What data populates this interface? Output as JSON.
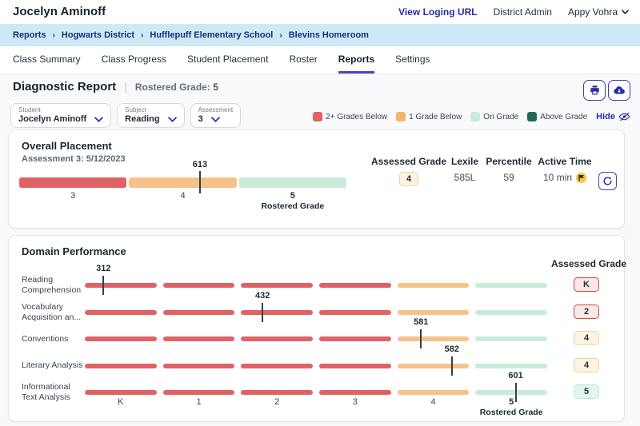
{
  "colors": {
    "below2": "#DF6264",
    "below1": "#F2B56F",
    "on_grade": "#C8EBDA",
    "above_grade": "#20695A",
    "accent_indigo": "#2A2AA8",
    "tab_underline": "#5143C9",
    "breadcrumb_bg": "#CDE9F6",
    "breadcrumb_text": "#1B2C7C",
    "bar_orange": "#F7C289",
    "marker": "#323F4B"
  },
  "header": {
    "user_name": "Jocelyn Aminoff",
    "view_login_url": "View Loging URL",
    "role": "District Admin",
    "account_name": "Appy Vohra"
  },
  "breadcrumb": {
    "separator": "›",
    "items": [
      "Reports",
      "Hogwarts District",
      "Hufflepuff Elementary School",
      "Blevins Homeroom"
    ]
  },
  "tabs": [
    {
      "label": "Class Summary",
      "active": false
    },
    {
      "label": "Class Progress",
      "active": false
    },
    {
      "label": "Student Placement",
      "active": false
    },
    {
      "label": "Roster",
      "active": false
    },
    {
      "label": "Reports",
      "active": true
    },
    {
      "label": "Settings",
      "active": false
    }
  ],
  "page": {
    "title": "Diagnostic Report",
    "divider": "|",
    "rostered_grade_label": "Rostered Grade:",
    "rostered_grade_value": "5"
  },
  "filters": {
    "student_label": "Student",
    "student_value": "Jocelyn Aminoff",
    "subject_label": "Subject",
    "subject_value": "Reading",
    "assessment_label": "Assessment",
    "assessment_value": "3"
  },
  "legend": {
    "items": [
      {
        "label": "2+ Grades Below",
        "status": "below2"
      },
      {
        "label": "1 Grade Below",
        "status": "below1"
      },
      {
        "label": "On Grade",
        "status": "on_grade"
      },
      {
        "label": "Above Grade",
        "status": "above_grade"
      }
    ],
    "hide_label": "Hide"
  },
  "overall_card": {
    "title": "Overall Placement",
    "subtitle": "Assessment 3: 5/12/2023",
    "stats": {
      "assessed_grade_label": "Assessed Grade",
      "assessed_grade_value": "4",
      "assessed_grade_status": "below1",
      "lexile_label": "Lexile",
      "lexile_value": "585L",
      "percentile_label": "Percentile",
      "percentile_value": "59",
      "active_time_label": "Active Time",
      "active_time_value": "10 min"
    }
  },
  "domain_card": {
    "title": "Domain Performance",
    "assessed_grade_header": "Assessed Grade"
  },
  "chart_data": [
    {
      "type": "bar",
      "name": "overall_placement",
      "title": "Overall Placement",
      "subtitle": "Assessment 3: 5/12/2023",
      "bands": [
        {
          "grade": "3",
          "status": "below2"
        },
        {
          "grade": "4",
          "status": "below1"
        },
        {
          "grade": "5",
          "status": "on_grade",
          "note": "Rostered Grade"
        }
      ],
      "marker": {
        "value": 613,
        "band_index": 1,
        "fraction": 0.66
      }
    },
    {
      "type": "bar",
      "name": "domain_performance",
      "title": "Domain Performance",
      "x_categories": [
        "K",
        "1",
        "2",
        "3",
        "4",
        "5"
      ],
      "x_axis_note": "Rostered Grade",
      "rostered_grade_index": 5,
      "segment_status_by_grade": [
        "below2",
        "below2",
        "below2",
        "below2",
        "below1",
        "on_grade"
      ],
      "rows": [
        {
          "label_lines": [
            "Reading",
            "Comprehension"
          ],
          "value": 312,
          "segment_index": 0,
          "fraction": 0.26,
          "assessed_grade": "K",
          "assessed_status": "below2"
        },
        {
          "label_lines": [
            "Vocabulary",
            "Acquisition an..."
          ],
          "value": 432,
          "segment_index": 2,
          "fraction": 0.3,
          "assessed_grade": "2",
          "assessed_status": "below2"
        },
        {
          "label_lines": [
            "Conventions"
          ],
          "value": 581,
          "segment_index": 4,
          "fraction": 0.33,
          "assessed_grade": "4",
          "assessed_status": "below1"
        },
        {
          "label_lines": [
            "Literary Analysis"
          ],
          "value": 582,
          "segment_index": 4,
          "fraction": 0.76,
          "assessed_grade": "4",
          "assessed_status": "below1"
        },
        {
          "label_lines": [
            "Informational",
            "Text Analysis"
          ],
          "value": 601,
          "segment_index": 5,
          "fraction": 0.56,
          "assessed_grade": "5",
          "assessed_status": "on_grade"
        }
      ]
    }
  ]
}
